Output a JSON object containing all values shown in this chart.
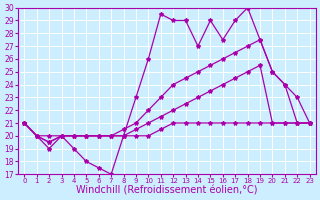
{
  "background_color": "#cceeff",
  "grid_color": "#ffffff",
  "line_color": "#aa00aa",
  "marker": "*",
  "markersize": 3,
  "linewidth": 0.9,
  "xlabel": "Windchill (Refroidissement éolien,°C)",
  "xlabel_fontsize": 7,
  "xlim": [
    -0.5,
    23.5
  ],
  "ylim": [
    17,
    30
  ],
  "yticks": [
    17,
    18,
    19,
    20,
    21,
    22,
    23,
    24,
    25,
    26,
    27,
    28,
    29,
    30
  ],
  "xticks": [
    0,
    1,
    2,
    3,
    4,
    5,
    6,
    7,
    8,
    9,
    10,
    11,
    12,
    13,
    14,
    15,
    16,
    17,
    18,
    19,
    20,
    21,
    22,
    23
  ],
  "lines": [
    {
      "x": [
        0,
        1,
        2,
        3,
        4,
        5,
        6,
        7,
        8,
        9,
        10,
        11,
        12,
        13,
        14,
        15,
        16,
        17,
        18,
        19,
        20,
        21,
        22,
        23
      ],
      "y": [
        21,
        20,
        19,
        20,
        19,
        18,
        17.5,
        17,
        20,
        23,
        26,
        29.5,
        29,
        29,
        27,
        29,
        27.5,
        29,
        30,
        27.5,
        25,
        24,
        21,
        21
      ]
    },
    {
      "x": [
        0,
        1,
        2,
        3,
        4,
        5,
        6,
        7,
        8,
        9,
        10,
        11,
        12,
        13,
        14,
        15,
        16,
        17,
        18,
        19,
        20,
        21,
        22,
        23
      ],
      "y": [
        21,
        20,
        20,
        20,
        20,
        20,
        20,
        20,
        20.5,
        21,
        22,
        23,
        24,
        24.5,
        25,
        25.5,
        26,
        26.5,
        27,
        27.5,
        25,
        24,
        23,
        21
      ]
    },
    {
      "x": [
        0,
        1,
        2,
        3,
        4,
        5,
        6,
        7,
        8,
        9,
        10,
        11,
        12,
        13,
        14,
        15,
        16,
        17,
        18,
        19,
        20,
        21,
        22,
        23
      ],
      "y": [
        21,
        20,
        19.5,
        20,
        20,
        20,
        20,
        20,
        20,
        20.5,
        21,
        21.5,
        22,
        22.5,
        23,
        23.5,
        24,
        24.5,
        25,
        25.5,
        21,
        21,
        21,
        21
      ]
    },
    {
      "x": [
        0,
        1,
        2,
        3,
        4,
        5,
        6,
        7,
        8,
        9,
        10,
        11,
        12,
        13,
        14,
        15,
        16,
        17,
        18,
        19,
        20,
        21,
        22,
        23
      ],
      "y": [
        21,
        20,
        19.5,
        20,
        20,
        20,
        20,
        20,
        20,
        20,
        20,
        20.5,
        21,
        21,
        21,
        21,
        21,
        21,
        21,
        21,
        21,
        21,
        21,
        21
      ]
    }
  ]
}
